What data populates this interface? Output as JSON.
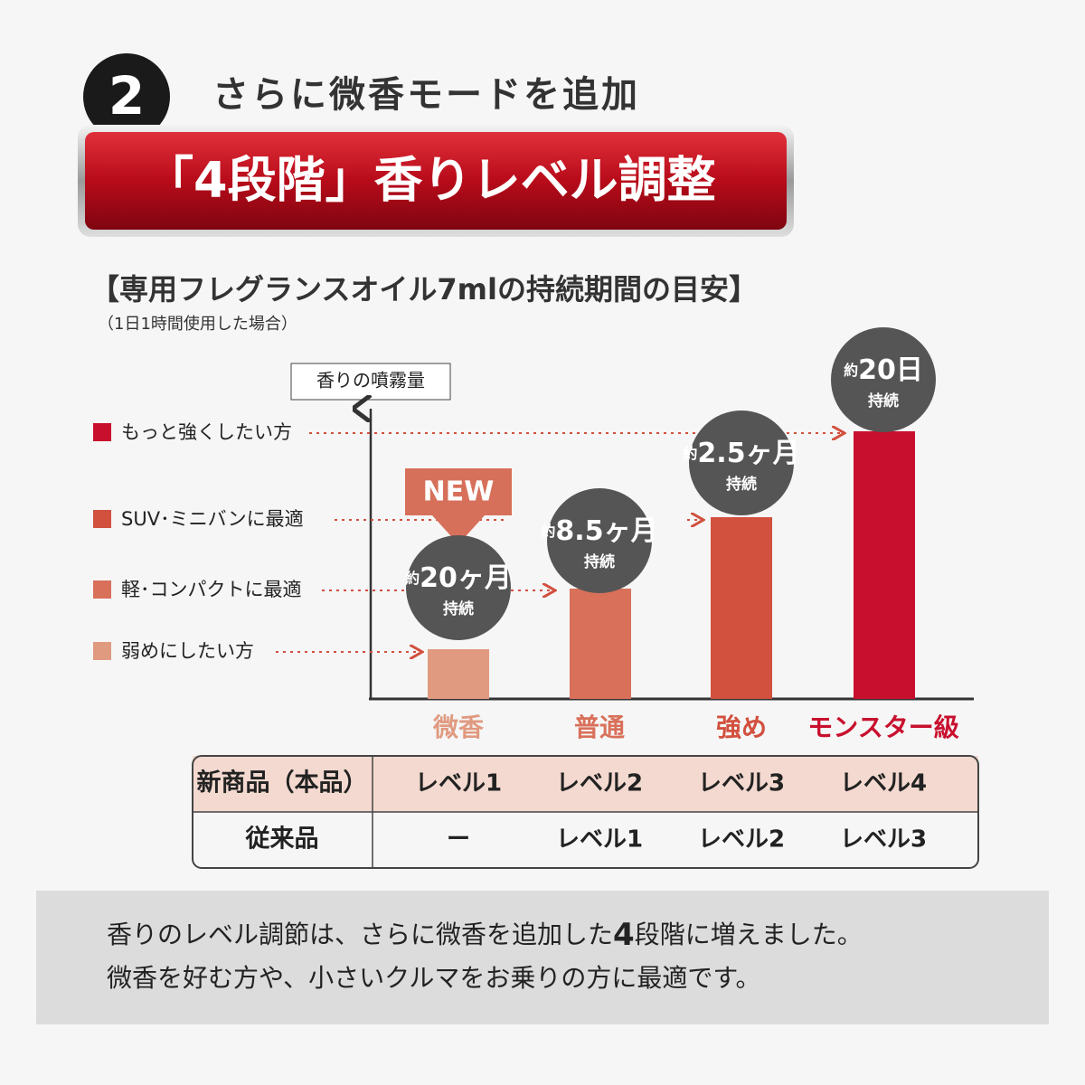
{
  "header": {
    "number": "2",
    "subtitle": "さらに微香モードを追加",
    "banner": "「4段階」香りレベル調整"
  },
  "chart": {
    "heading": "【専用フレグランスオイル7mlの持続期間の目安】",
    "note": "（1日1時間使用した場合）",
    "axis_label": "香りの噴霧量",
    "legend": [
      "もっと強くしたい方",
      "SUV･ミニバンに最適",
      "軽･コンパクトに最適",
      "弱めにしたい方"
    ],
    "badge": "NEW",
    "bubbles": [
      {
        "prefix": "約",
        "value": "20ヶ月",
        "suffix": "持続"
      },
      {
        "prefix": "約",
        "value": "8.5ヶ月",
        "suffix": "持続"
      },
      {
        "prefix": "約",
        "value": "2.5ヶ月",
        "suffix": "持続"
      },
      {
        "prefix": "約",
        "value": "20日",
        "suffix": "持続"
      }
    ],
    "categories": [
      "微香",
      "普通",
      "強め",
      "モンスター級"
    ]
  },
  "table": {
    "rows": [
      [
        "新商品（本品）",
        "レベル1",
        "レベル2",
        "レベル3",
        "レベル4"
      ],
      [
        "従来品",
        "ー",
        "レベル1",
        "レベル2",
        "レベル3"
      ]
    ]
  },
  "footer": {
    "line1": [
      "香りのレベル調節は、さらに微香を追加した",
      "4",
      "段階に増えました。"
    ],
    "line2": "微香を好む方や、小さいクルマをお乗りの方に最適です。"
  }
}
